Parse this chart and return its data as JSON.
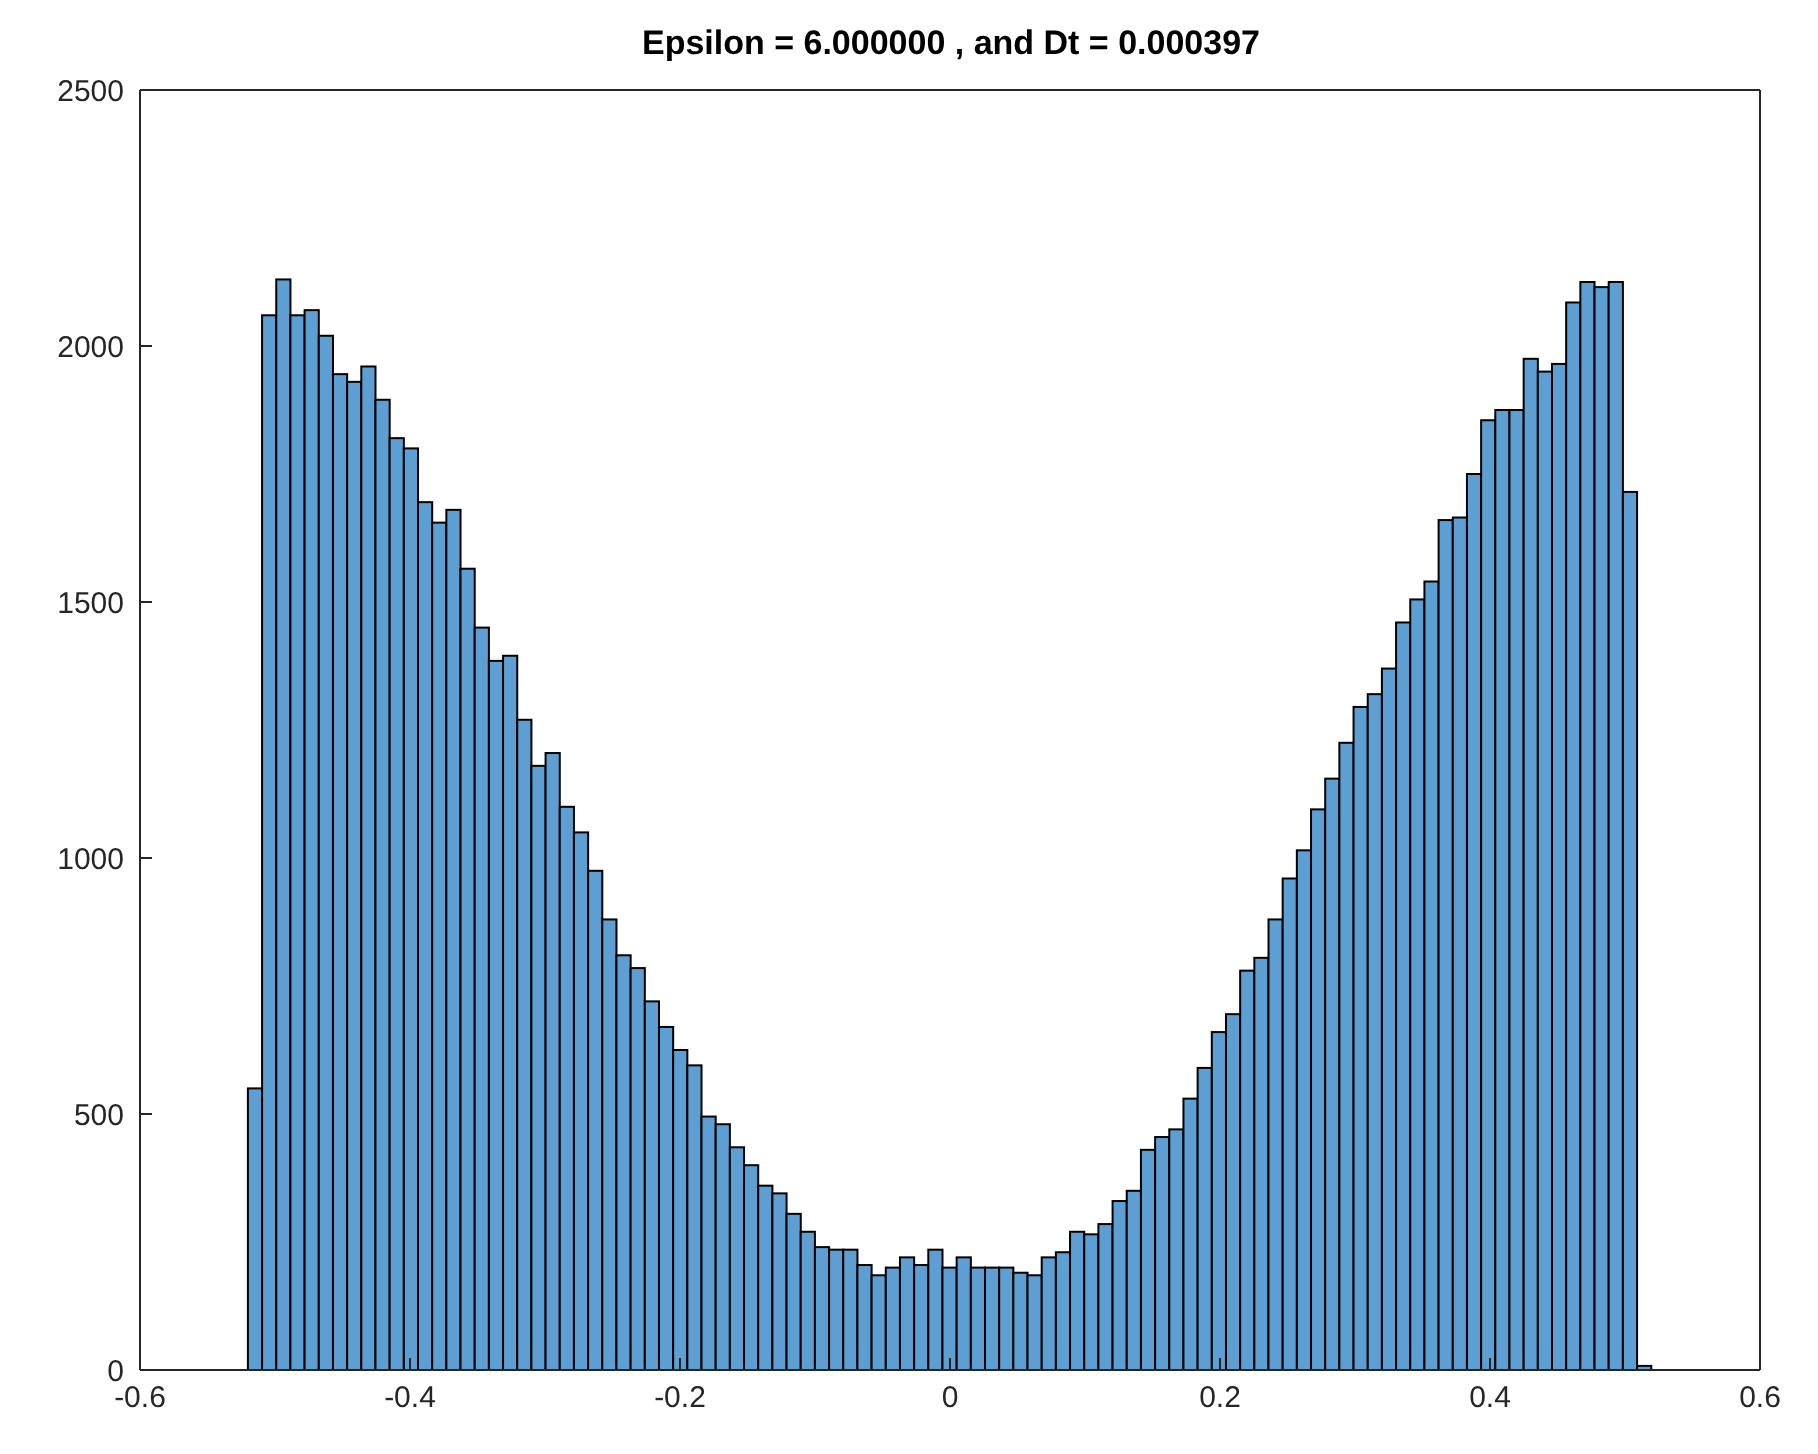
{
  "chart_data": {
    "type": "histogram",
    "title": "Epsilon = 6.000000 , and Dt = 0.000397",
    "bins": [
      -0.52,
      -0.5095,
      -0.499,
      -0.4885,
      -0.478,
      -0.4675,
      -0.457,
      -0.4465,
      -0.436,
      -0.4255,
      -0.415,
      -0.4045,
      -0.394,
      -0.3835,
      -0.373,
      -0.3625,
      -0.352,
      -0.3415,
      -0.331,
      -0.3205,
      -0.31,
      -0.2995,
      -0.289,
      -0.2785,
      -0.268,
      -0.2575,
      -0.247,
      -0.2365,
      -0.226,
      -0.2155,
      -0.205,
      -0.1945,
      -0.184,
      -0.1735,
      -0.163,
      -0.1525,
      -0.142,
      -0.1315,
      -0.121,
      -0.1105,
      -0.1,
      -0.0895,
      -0.079,
      -0.0685,
      -0.058,
      -0.0475,
      -0.037,
      -0.0265,
      -0.016,
      -0.0055,
      0.005,
      0.0155,
      0.026,
      0.0365,
      0.047,
      0.0575,
      0.068,
      0.0785,
      0.089,
      0.0995,
      0.11,
      0.1205,
      0.131,
      0.1415,
      0.152,
      0.1625,
      0.173,
      0.1835,
      0.194,
      0.2045,
      0.215,
      0.2255,
      0.236,
      0.2465,
      0.257,
      0.2675,
      0.278,
      0.2885,
      0.299,
      0.3095,
      0.32,
      0.3305,
      0.341,
      0.3515,
      0.362,
      0.3725,
      0.383,
      0.3935,
      0.404,
      0.4145,
      0.425,
      0.4355,
      0.446,
      0.4565,
      0.467,
      0.4775,
      0.488,
      0.4985,
      0.509,
      0.5195
    ],
    "values": [
      550,
      2060,
      2130,
      2060,
      2070,
      2020,
      1945,
      1930,
      1960,
      1895,
      1820,
      1800,
      1695,
      1655,
      1680,
      1565,
      1450,
      1385,
      1395,
      1270,
      1180,
      1205,
      1100,
      1050,
      975,
      880,
      810,
      785,
      720,
      670,
      625,
      595,
      495,
      480,
      435,
      400,
      360,
      345,
      305,
      270,
      240,
      235,
      235,
      205,
      185,
      200,
      220,
      205,
      235,
      200,
      220,
      200,
      200,
      200,
      190,
      185,
      220,
      230,
      270,
      265,
      285,
      330,
      350,
      430,
      455,
      470,
      530,
      590,
      660,
      695,
      780,
      805,
      880,
      960,
      1015,
      1095,
      1155,
      1225,
      1295,
      1320,
      1370,
      1460,
      1505,
      1540,
      1660,
      1665,
      1750,
      1855,
      1875,
      1875,
      1975,
      1950,
      1965,
      2085,
      2125,
      2115,
      2125,
      1715,
      8
    ],
    "color": "#5e9fd3",
    "xlim": [
      -0.6,
      0.6
    ],
    "xticks": [
      -0.6,
      -0.4,
      -0.2,
      0,
      0.2,
      0.4,
      0.6
    ],
    "ylim": [
      0,
      2500
    ],
    "yticks": [
      0,
      500,
      1000,
      1500,
      2000,
      2500
    ],
    "grid": false,
    "legend": false
  }
}
